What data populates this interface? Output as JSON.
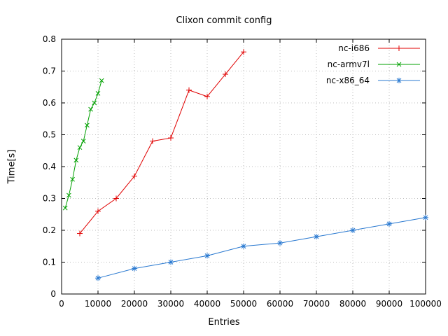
{
  "chart_data": {
    "type": "line",
    "title": "Clixon commit config",
    "xlabel": "Entries",
    "ylabel": "Time[s]",
    "xlim": [
      0,
      100000
    ],
    "ylim": [
      0,
      0.8
    ],
    "xticks": [
      0,
      10000,
      20000,
      30000,
      40000,
      50000,
      60000,
      70000,
      80000,
      90000,
      100000
    ],
    "yticks": [
      0,
      0.1,
      0.2,
      0.3,
      0.4,
      0.5,
      0.6,
      0.7,
      0.8
    ],
    "grid": true,
    "grid_color": "#bdbdbd",
    "legend_position": "top-right-inside",
    "series": [
      {
        "name": "nc-i686",
        "color": "#e00000",
        "marker": "plus",
        "points": [
          [
            5000,
            0.19
          ],
          [
            10000,
            0.26
          ],
          [
            15000,
            0.3
          ],
          [
            20000,
            0.37
          ],
          [
            25000,
            0.48
          ],
          [
            30000,
            0.49
          ],
          [
            35000,
            0.64
          ],
          [
            40000,
            0.62
          ],
          [
            45000,
            0.69
          ],
          [
            50000,
            0.76
          ]
        ]
      },
      {
        "name": "nc-armv7l",
        "color": "#00a000",
        "marker": "cross",
        "points": [
          [
            1000,
            0.27
          ],
          [
            2000,
            0.31
          ],
          [
            3000,
            0.36
          ],
          [
            4000,
            0.42
          ],
          [
            5000,
            0.46
          ],
          [
            6000,
            0.48
          ],
          [
            7000,
            0.53
          ],
          [
            8000,
            0.58
          ],
          [
            9000,
            0.6
          ],
          [
            10000,
            0.63
          ],
          [
            11000,
            0.67
          ]
        ]
      },
      {
        "name": "nc-x86_64",
        "color": "#2878d0",
        "marker": "asterisk",
        "points": [
          [
            10000,
            0.05
          ],
          [
            20000,
            0.08
          ],
          [
            30000,
            0.1
          ],
          [
            40000,
            0.12
          ],
          [
            50000,
            0.15
          ],
          [
            60000,
            0.16
          ],
          [
            70000,
            0.18
          ],
          [
            80000,
            0.2
          ],
          [
            90000,
            0.22
          ],
          [
            100000,
            0.24
          ]
        ]
      }
    ]
  }
}
